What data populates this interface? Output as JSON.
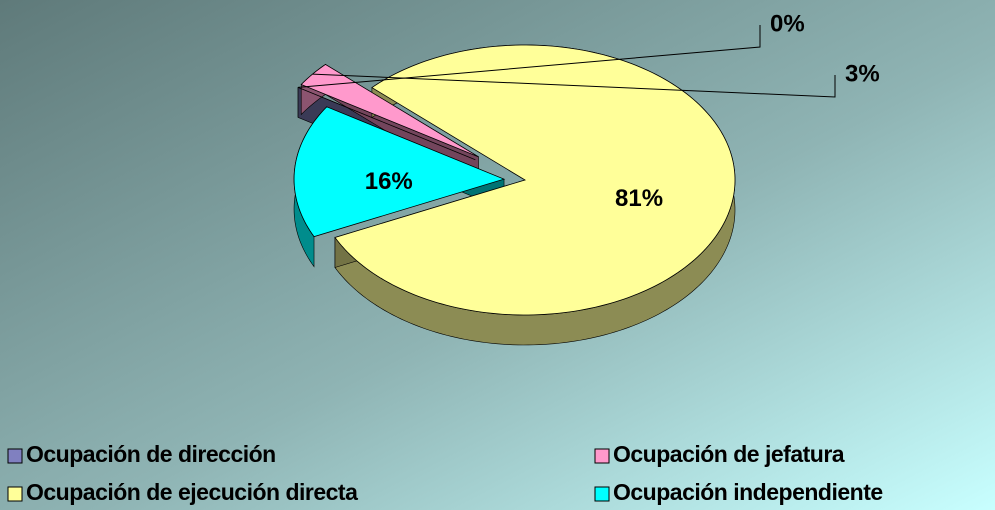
{
  "chart_data": {
    "type": "pie3d",
    "categories": [
      "Ocupación de dirección",
      "Ocupación de jefatura",
      "Ocupación de ejecución directa",
      "Ocupación independiente"
    ],
    "values": [
      0,
      3,
      81,
      16
    ],
    "value_labels": [
      "0%",
      "3%",
      "81%",
      "16%"
    ],
    "colors": [
      "#8080c0",
      "#ff99cc",
      "#ffff99",
      "#00ffff"
    ],
    "legend": "bottom"
  }
}
